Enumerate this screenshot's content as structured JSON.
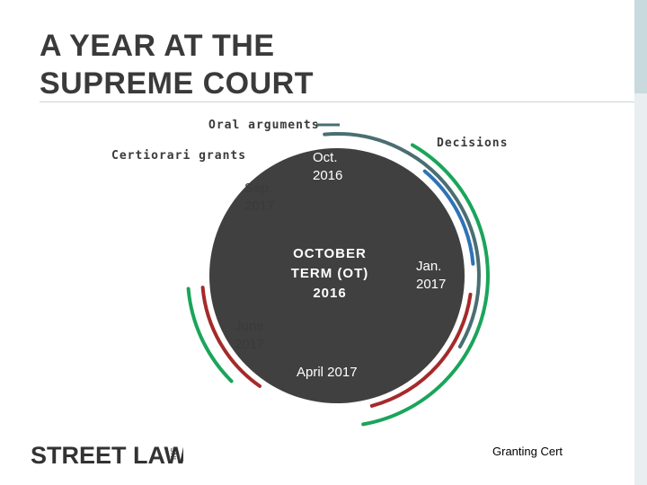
{
  "slide": {
    "title_line1": "A YEAR AT THE",
    "title_line2": "SUPREME COURT"
  },
  "diagram": {
    "center_label_lines": [
      "OCTOBER",
      "TERM (OT)",
      "2016"
    ],
    "month_labels": {
      "oct": [
        "Oct.",
        "2016"
      ],
      "sep": [
        "Sep.",
        "2017"
      ],
      "jan": [
        "Jan.",
        "2017"
      ],
      "june": [
        "June",
        "2017"
      ],
      "april": "April 2017"
    },
    "tracks": {
      "oral_arguments": "Oral arguments",
      "certiorari": "Certiorari grants",
      "decisions": "Decisions"
    },
    "colors": {
      "circle": "#404040",
      "oral_arguments": "#4a6e72",
      "oral_arguments_blue": "#2f72b6",
      "certiorari": "#a52a2a",
      "decisions": "#1aa55a"
    }
  },
  "footer": {
    "logo_text": "STREET LAW",
    "logo_suffix": "INC",
    "caption": "Granting Cert"
  }
}
